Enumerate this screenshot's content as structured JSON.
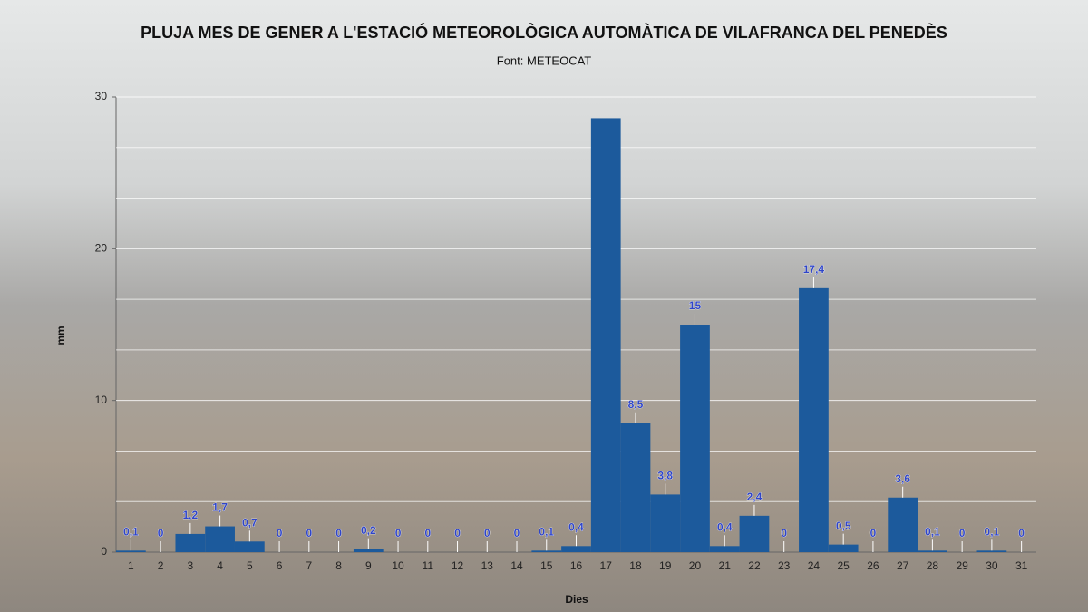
{
  "chart_data": {
    "type": "bar",
    "title": "PLUJA MES DE GENER A L'ESTACIÓ METEOROLÒGICA AUTOMÀTICA DE VILAFRANCA DEL PENEDÈS",
    "subtitle": "Font: METEOCAT",
    "x_label": "Dies",
    "y_label": "mm",
    "categories": [
      "1",
      "2",
      "3",
      "4",
      "5",
      "6",
      "7",
      "8",
      "9",
      "10",
      "11",
      "12",
      "13",
      "14",
      "15",
      "16",
      "17",
      "18",
      "19",
      "20",
      "21",
      "22",
      "23",
      "24",
      "25",
      "26",
      "27",
      "28",
      "29",
      "30",
      "31"
    ],
    "values": [
      0.1,
      0,
      1.2,
      1.7,
      0.7,
      0,
      0,
      0,
      0.2,
      0,
      0,
      0,
      0,
      0,
      0.1,
      0.4,
      28.6,
      8.5,
      3.8,
      15,
      0.4,
      2.4,
      0,
      17.4,
      0.5,
      0,
      3.6,
      0.1,
      0,
      0.1,
      0
    ],
    "value_labels": [
      "0,1",
      "0",
      "1,2",
      "1,7",
      "0,7",
      "0",
      "0",
      "0",
      "0,2",
      "0",
      "0",
      "0",
      "0",
      "0",
      "0,1",
      "0,4",
      null,
      "8,5",
      "3,8",
      "15",
      "0,4",
      "2,4",
      "0",
      "17,4",
      "0,5",
      "0",
      "3,6",
      "0,1",
      "0",
      "0,1",
      "0"
    ],
    "color": "#1c5a9c",
    "label_color": "#2f45c8",
    "ylim": [
      0,
      30
    ],
    "yticks": [
      0,
      10,
      20,
      30
    ],
    "grid": true,
    "grid_subdivisions": 3
  }
}
